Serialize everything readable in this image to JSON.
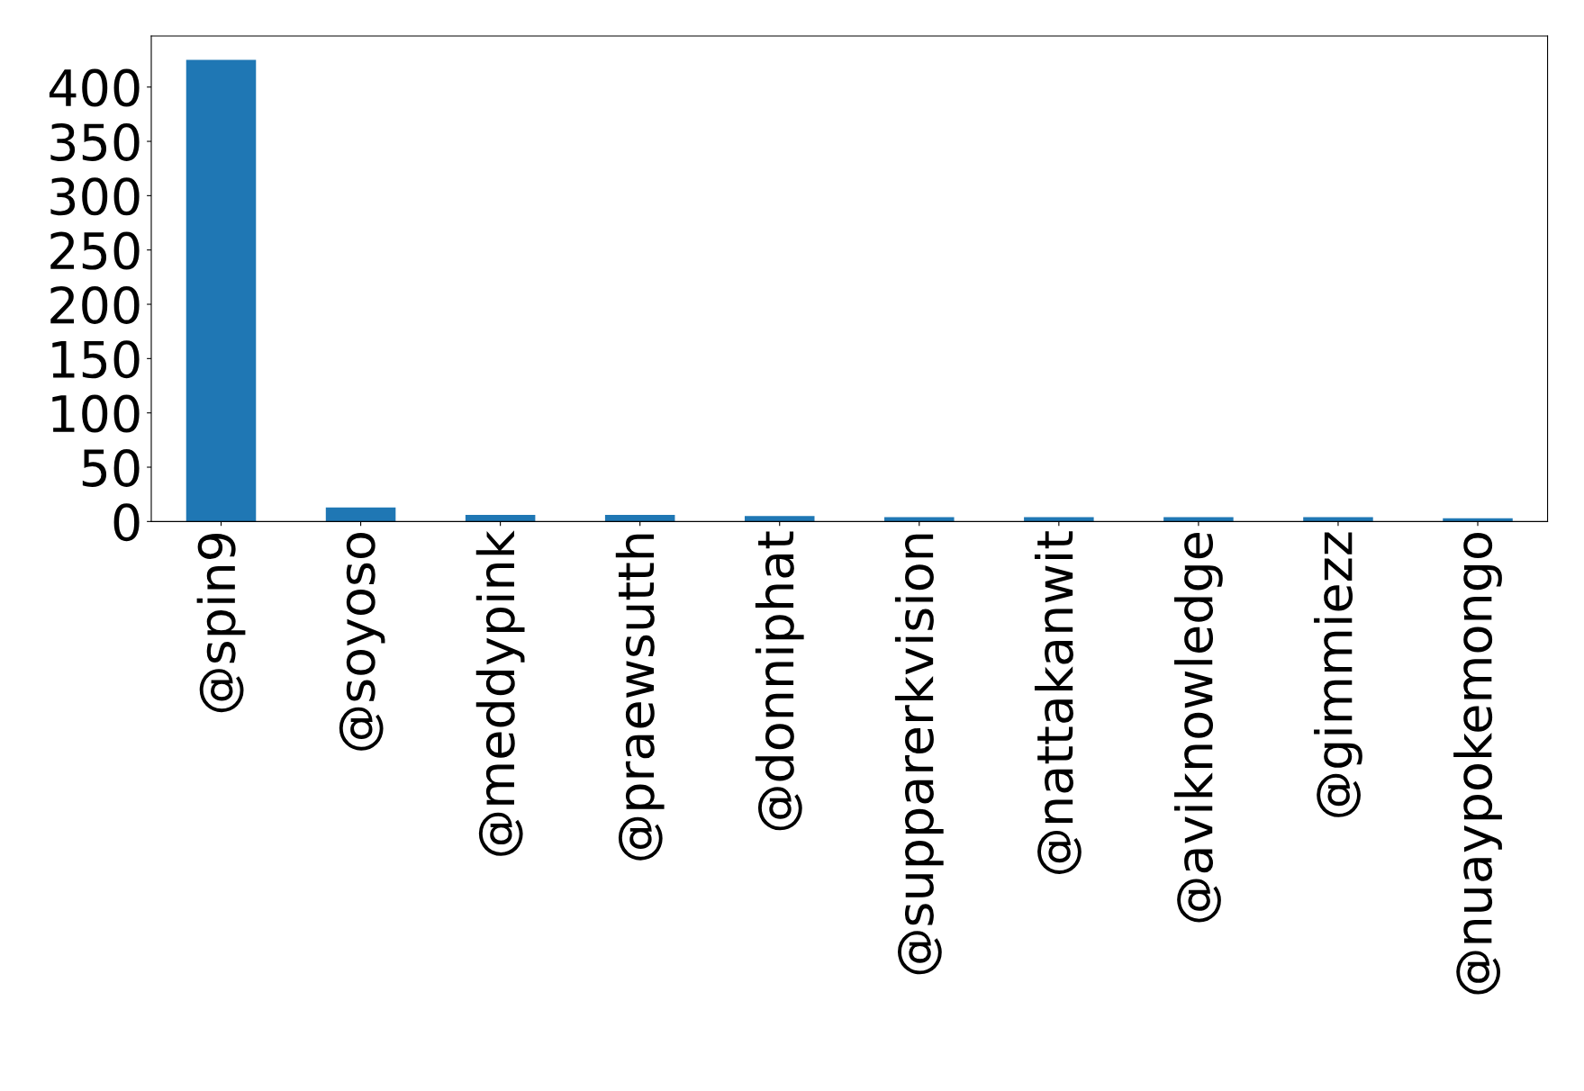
{
  "chart_data": {
    "type": "bar",
    "categories": [
      "@spin9",
      "@soyoso",
      "@meddypink",
      "@praewsutth",
      "@donniphat",
      "@supparerkvision",
      "@nattakanwit",
      "@aviknowledge",
      "@gimmiezz",
      "@nuaypokemongo"
    ],
    "values": [
      425,
      13,
      6,
      6,
      5,
      4,
      4,
      4,
      4,
      3
    ],
    "color": "#1f77b4",
    "ylim": [
      0,
      447
    ],
    "yticks": [
      0,
      50,
      100,
      150,
      200,
      250,
      300,
      350,
      400
    ],
    "grid": false,
    "legend": false
  }
}
